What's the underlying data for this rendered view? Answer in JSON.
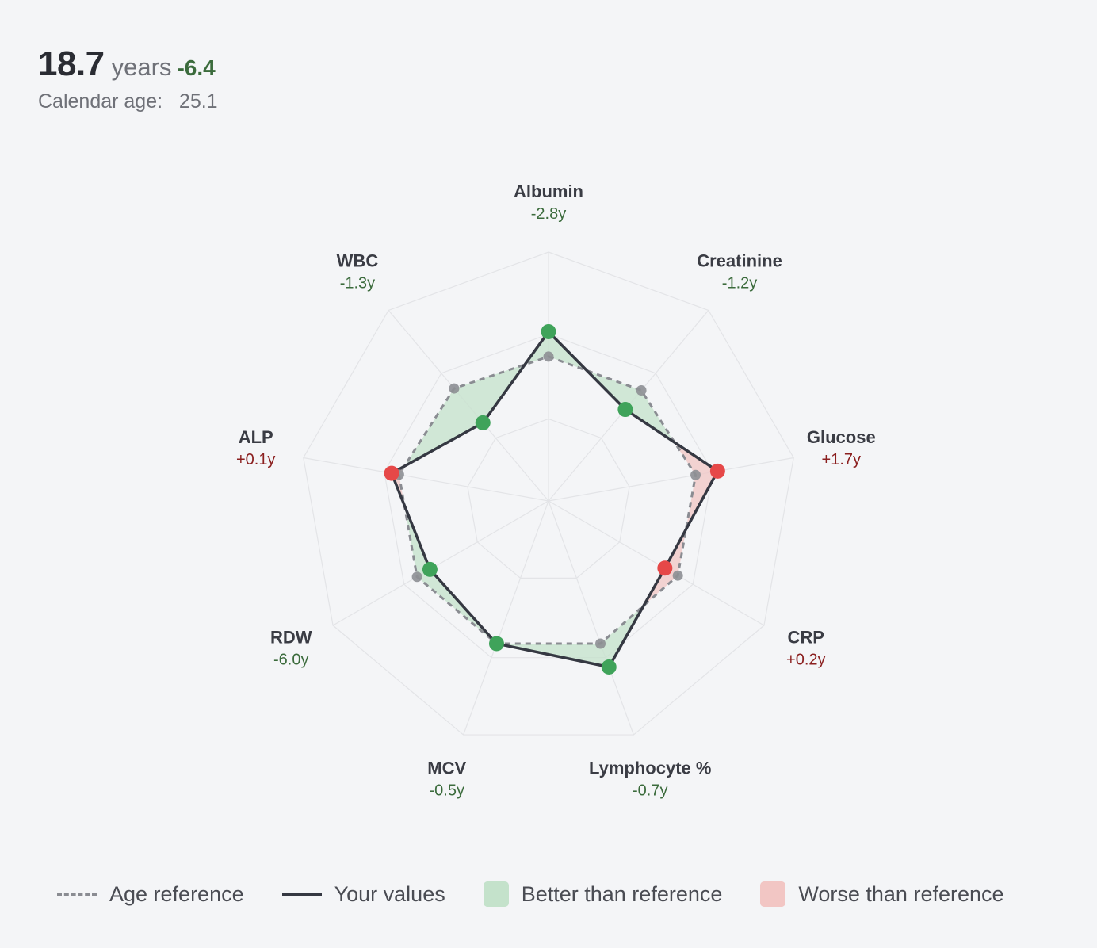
{
  "header": {
    "biological_age": "18.7",
    "unit": "years",
    "delta": "-6.4",
    "calendar_age_label": "Calendar age:",
    "calendar_age_value": "25.1"
  },
  "colors": {
    "better": "#3b6b3c",
    "worse": "#8b1f1f",
    "better_point": "#3fa35a",
    "worse_point": "#e64848",
    "better_fill": "#c4e2cb",
    "worse_fill": "#f2c6c4",
    "your_line": "#353842",
    "ref_line": "#8a8c92",
    "grid": "#e3e4e7"
  },
  "chart_data": {
    "type": "radar",
    "scale_max": 1.0,
    "grid_levels": [
      0.33,
      0.67,
      1.0
    ],
    "axes": [
      {
        "name": "Albumin",
        "delta": "-2.8y",
        "status": "better",
        "reference": 0.58,
        "value": 0.68
      },
      {
        "name": "Creatinine",
        "delta": "-1.2y",
        "status": "better",
        "reference": 0.58,
        "value": 0.48
      },
      {
        "name": "Glucose",
        "delta": "+1.7y",
        "status": "worse",
        "reference": 0.6,
        "value": 0.69
      },
      {
        "name": "CRP",
        "delta": "+0.2y",
        "status": "worse",
        "reference": 0.6,
        "value": 0.54
      },
      {
        "name": "Lymphocyte %",
        "delta": "-0.7y",
        "status": "better",
        "reference": 0.61,
        "value": 0.71
      },
      {
        "name": "MCV",
        "delta": "-0.5y",
        "status": "better",
        "reference": 0.61,
        "value": 0.61
      },
      {
        "name": "RDW",
        "delta": "-6.0y",
        "status": "better",
        "reference": 0.61,
        "value": 0.55
      },
      {
        "name": "ALP",
        "delta": "+0.1y",
        "status": "worse",
        "reference": 0.61,
        "value": 0.64
      },
      {
        "name": "WBC",
        "delta": "-1.3y",
        "status": "better",
        "reference": 0.59,
        "value": 0.41
      }
    ]
  },
  "legend": {
    "reference": "Age reference",
    "yours": "Your values",
    "better": "Better than reference",
    "worse": "Worse than reference"
  }
}
